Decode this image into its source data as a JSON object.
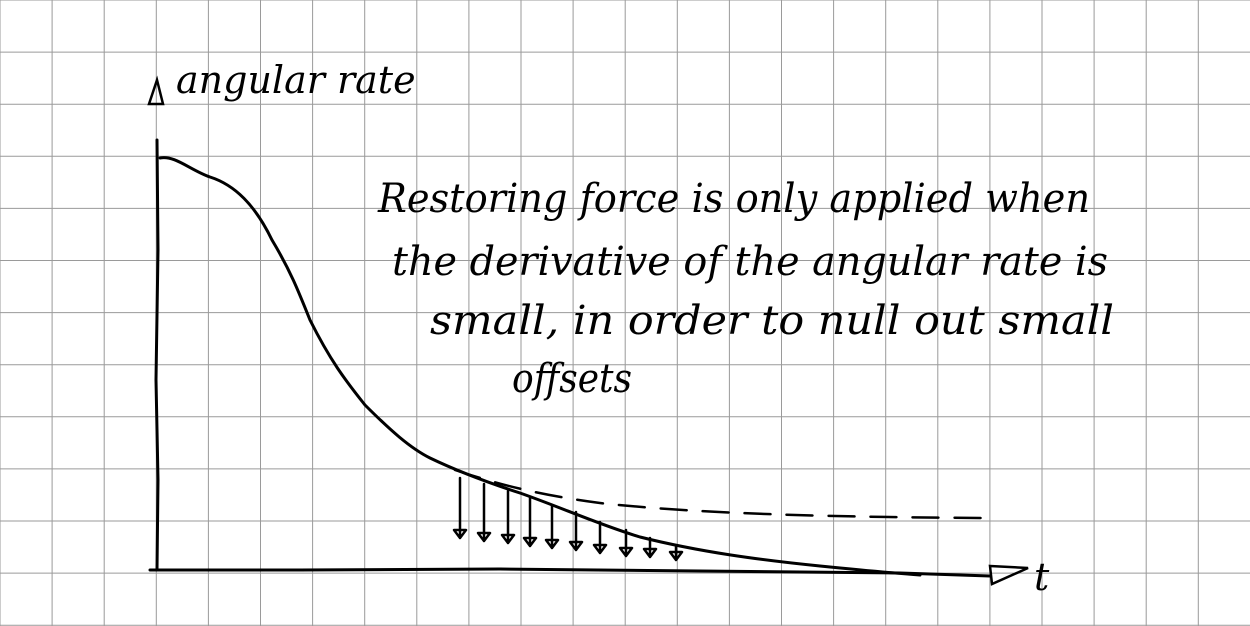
{
  "diagram": {
    "y_axis_label": "angular rate",
    "x_axis_label": "t",
    "annotation_lines": [
      "Restoring force is only applied when",
      "the derivative of the angular rate is",
      "small, in order to null out small",
      "offsets"
    ],
    "colors": {
      "ink": "#000000",
      "grid": "#9a9a9a",
      "paper": "#ffffff"
    },
    "icons": [
      "y-axis-arrowhead-icon",
      "x-axis-arrowhead-icon",
      "down-arrow-icon"
    ]
  }
}
